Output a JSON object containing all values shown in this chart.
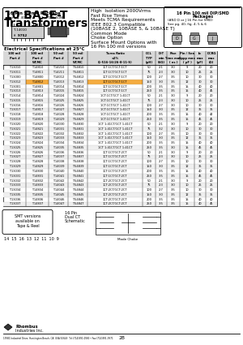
{
  "title": "10 BASE-T",
  "title2": "Transformers",
  "features": [
    "High  Isolation 2000Vrms",
    "Fast Rise Times",
    "Meets TCMA Requirements",
    "IEEE 802.3 Compatible",
    "(10BASE 2, 10BASE 5, & 10BASE T)",
    "Common Mode",
    "Choke Option",
    "Surface Mount Options with",
    "16 Pin 100 mil versions"
  ],
  "table_rows": [
    [
      "T-13010",
      "T-14810",
      "T-14210",
      "T-54810",
      "1CT:1CT/1CT:1CT",
      "50",
      "2:1",
      "3.0",
      "9",
      "20",
      "20"
    ],
    [
      "T-13011",
      "T-14811",
      "T-14211",
      "T-54811",
      "1CT:1CT/1CT:1CT",
      "75",
      "2:3",
      "3.0",
      "10",
      "25",
      "25"
    ],
    [
      "T-13000",
      "T-14800",
      "T-14012",
      "T-54812",
      "1CT:1CT/1CT:1CT",
      "100",
      "2:7",
      "3.5",
      "10",
      "30",
      "30"
    ],
    [
      "T-13012",
      "T-14812",
      "T-14013",
      "T-54813",
      "1CT:1CT/1CT:1CT",
      "150",
      "3:0",
      "3.5",
      "12",
      "30",
      "30"
    ],
    [
      "T-13001",
      "T-14801",
      "T-14014",
      "T-54814",
      "1CT:1CT/1CT:1CT",
      "200",
      "3:5",
      "3.5",
      "15",
      "40",
      "40"
    ],
    [
      "T-13013",
      "T-14813",
      "T-14015",
      "T-54815",
      "1CT:1CT/1CT:1CT",
      "250",
      "3:5",
      "3.5",
      "15",
      "40",
      "45"
    ],
    [
      "T-13014",
      "T-14814",
      "T-14024",
      "T-54824",
      "1CT:1CT/1CT 1:41CT",
      "50",
      "2:1",
      "3.0",
      "9",
      "20",
      "20"
    ],
    [
      "T-13015",
      "T-14815",
      "T-14025",
      "T-54825",
      "1CT:1CT/1CT 1:41CT",
      "75",
      "2:3",
      "3.0",
      "10",
      "25",
      "25"
    ],
    [
      "T-13016",
      "T-14816",
      "T-14026",
      "T-54826",
      "1CT:1CT/1CT 1:41CT",
      "100",
      "2:7",
      "3.0",
      "10",
      "30",
      "30"
    ],
    [
      "T-13017",
      "T-14817",
      "T-14027",
      "T-54827",
      "1CT:1CT/1CT 1:41CT",
      "150",
      "3:0",
      "3.5",
      "12",
      "35",
      "35"
    ],
    [
      "T-13018",
      "T-14818",
      "T-14028",
      "T-54828",
      "1CT:1CT/1CT 1:41CT",
      "200",
      "3:5",
      "3.5",
      "15",
      "40",
      "42"
    ],
    [
      "T-13019",
      "T-14819",
      "T-14029",
      "T-54829",
      "1CT:1CT/1CT 1:41CT",
      "250",
      "3:5",
      "3.5",
      "15",
      "45",
      "45"
    ],
    [
      "T-13020",
      "T-14820",
      "T-14030",
      "T-54830",
      "1CT 1:41CT/1CT 1:41CT",
      "50",
      "2:1",
      "3.0",
      "9",
      "20",
      "20"
    ],
    [
      "T-13021",
      "T-14821",
      "T-14031",
      "T-54831",
      "1CT 1:41CT/1CT 1:41CT",
      "75",
      "3:2",
      "3.0",
      "10",
      "30",
      "30"
    ],
    [
      "T-13022",
      "T-14822",
      "T-14032",
      "T-54832",
      "1CT 1:41CT/1CT 1:41CT",
      "100",
      "2:7",
      "3.5",
      "10",
      "30",
      "30"
    ],
    [
      "T-13023",
      "T-14823",
      "T-14033",
      "T-54833",
      "1CT 1:41CT/1CT 1:41CT",
      "150",
      "3:0",
      "3.5",
      "12",
      "35",
      "35"
    ],
    [
      "T-13024",
      "T-14824",
      "T-14034",
      "T-54834",
      "1CT 1:41CT/1CT 1:41CT",
      "200",
      "3:5",
      "3.5",
      "15",
      "40",
      "40"
    ],
    [
      "T-13025",
      "T-14825",
      "T-14035",
      "T-54835",
      "1CT 1:41CT/1CT 1:41CT",
      "250",
      "3:5",
      "3.0",
      "15",
      "45",
      "45"
    ],
    [
      "T-13026",
      "T-14826",
      "T-14036",
      "T-54836",
      "1CT:1CT/1CT:2CT",
      "50",
      "2:1",
      "3.0",
      "9",
      "20",
      "20"
    ],
    [
      "T-13027",
      "T-14827",
      "T-14037",
      "T-54837",
      "1CT:1CT/1CT:2CT",
      "75",
      "2:3",
      "3.0",
      "10",
      "25",
      "25"
    ],
    [
      "T-13028",
      "T-14828",
      "T-14038",
      "T-54838",
      "1CT:1CT/1CT:2CT",
      "100",
      "2:7",
      "3.5",
      "10",
      "30",
      "30"
    ],
    [
      "T-13029",
      "T-14829",
      "T-14039",
      "T-54839",
      "1CT:1CT/1CT:2CT",
      "150",
      "3:0",
      "3.5",
      "12",
      "35",
      "35"
    ],
    [
      "T-13030",
      "T-14830",
      "T-14040",
      "T-54840",
      "1CT:1CT/1CT:2CT",
      "200",
      "3:5",
      "3.5",
      "15",
      "40",
      "40"
    ],
    [
      "T-13031",
      "T-14831",
      "T-14041",
      "T-54841",
      "1CT:1CT/1CT:2CT",
      "250",
      "3:5",
      "3.5",
      "15",
      "45",
      "45"
    ],
    [
      "T-13032",
      "T-14832",
      "T-14042",
      "T-54842",
      "1CT:2CT/1CT:2CT",
      "50",
      "2:1",
      "3.0",
      "9",
      "20",
      "20"
    ],
    [
      "T-13033",
      "T-14833",
      "T-14043",
      "T-54843",
      "1CT:2CT/1CT:2CT",
      "75",
      "2:3",
      "3.0",
      "10",
      "25",
      "25"
    ],
    [
      "T-13034",
      "T-14834",
      "T-14044",
      "T-54844",
      "1CT:2CT/1CT:2CT",
      "100",
      "2:7",
      "3.5",
      "10",
      "30",
      "30"
    ],
    [
      "T-13035",
      "T-14835",
      "T-14045",
      "T-54845",
      "1CT:2CT/1CT:2CT",
      "150",
      "3:0",
      "3.5",
      "12",
      "35",
      "35"
    ],
    [
      "T-13036",
      "T-14836",
      "T-14046",
      "T-54846",
      "1CT:2CT/1CT:2CT",
      "200",
      "3:5",
      "3.5",
      "15",
      "40",
      "40"
    ],
    [
      "T-13037",
      "T-14837",
      "T-14047",
      "T-54847",
      "1CT:2CT/1CT:2CT",
      "250",
      "3:5",
      "3.5",
      "15",
      "40",
      "45"
    ]
  ],
  "highlight_row": 3,
  "col_headers_line1": [
    "100 mil",
    "100 mil",
    "50 mil",
    "50 mil",
    "Turns Ratio",
    "OCL",
    "D:T",
    "Rise",
    "Pin / Sea",
    "Io",
    "DCRΩ"
  ],
  "col_headers_line2": [
    "Part #",
    "Part #",
    "Part #",
    "Part #",
    "±2%",
    "TYP",
    "min",
    "Time max",
    "Cppp max",
    "max",
    "max"
  ],
  "col_headers_line3": [
    "",
    "WCMC",
    "",
    "WCMC",
    "(1-516-16/26-8-11-S)",
    "(µH)",
    "(VΩ)",
    "( ns )",
    "( pF )",
    "(µF)",
    "(Ω)"
  ],
  "bg_color": "#ffffff",
  "highlight_color": "#f5a020",
  "page_number": "28"
}
